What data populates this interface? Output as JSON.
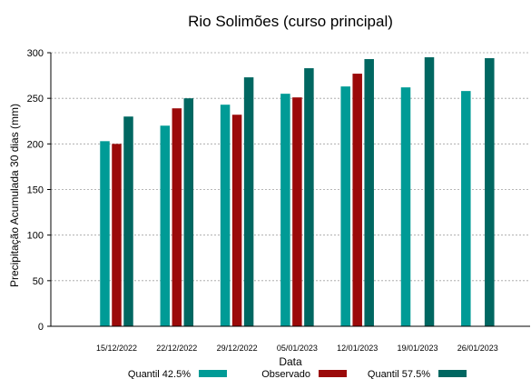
{
  "chart_data": {
    "type": "bar",
    "title": "Rio Solimões (curso principal)",
    "xlabel": "Data",
    "ylabel": "Precipitação Acumulada 30 dias (mm)",
    "ylim": [
      0,
      300
    ],
    "yticks": [
      0,
      50,
      100,
      150,
      200,
      250,
      300
    ],
    "grid": true,
    "legend_position": "bottom",
    "categories": [
      "15/12/2022",
      "22/12/2022",
      "29/12/2022",
      "05/01/2023",
      "12/01/2023",
      "19/01/2023",
      "26/01/2023"
    ],
    "series": [
      {
        "name": "Quantil 42.5%",
        "color": "#009b96",
        "values": [
          203,
          220,
          243,
          255,
          263,
          262,
          258
        ]
      },
      {
        "name": "Observado",
        "color": "#9b0a0a",
        "values": [
          200,
          239,
          232,
          251,
          277,
          null,
          null
        ]
      },
      {
        "name": "Quantil 57.5%",
        "color": "#006761",
        "values": [
          230,
          250,
          273,
          283,
          293,
          295,
          294
        ]
      }
    ]
  }
}
